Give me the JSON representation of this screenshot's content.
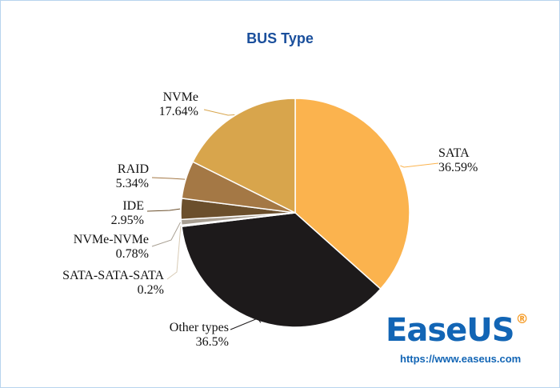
{
  "chart_data": {
    "type": "pie",
    "title": "BUS Type",
    "slices": [
      {
        "label": "SATA",
        "percent_label": "36.59%",
        "value": 36.59,
        "color": "#FBB34E"
      },
      {
        "label": "Other types",
        "percent_label": "36.5%",
        "value": 36.5,
        "color": "#1D1A1B"
      },
      {
        "label": "SATA-SATA-SATA",
        "percent_label": "0.2%",
        "value": 0.2,
        "color": "#D8CBB5"
      },
      {
        "label": "NVMe-NVMe",
        "percent_label": "0.78%",
        "value": 0.78,
        "color": "#A89F92"
      },
      {
        "label": "IDE",
        "percent_label": "2.95%",
        "value": 2.95,
        "color": "#6B4F2C"
      },
      {
        "label": "RAID",
        "percent_label": "5.34%",
        "value": 5.34,
        "color": "#A47845"
      },
      {
        "label": "NVMe",
        "percent_label": "17.64%",
        "value": 17.64,
        "color": "#D8A54C"
      }
    ],
    "start_angle_deg": 0,
    "direction": "clockwise"
  },
  "brand": {
    "name_part1": "Ease",
    "name_part2": "US",
    "registered_mark": "®",
    "url": "https://www.easeus.com",
    "color_blue": "#1265B5",
    "color_orange": "#F59A23"
  },
  "colors": {
    "title": "#1A4F9C",
    "frame_border": "#B8D4EE"
  }
}
